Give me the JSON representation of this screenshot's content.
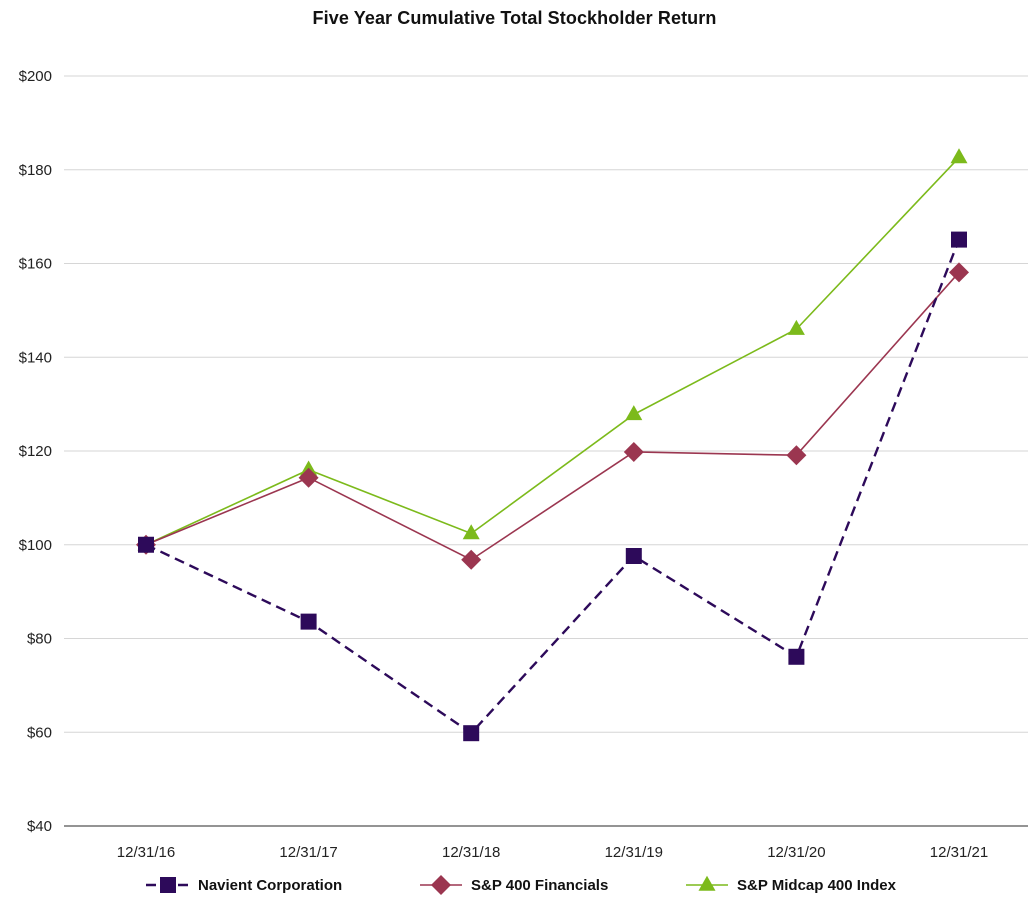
{
  "chart_data": {
    "type": "line",
    "title": "Five Year Cumulative Total Stockholder Return",
    "xlabel": "",
    "ylabel": "",
    "categories": [
      "12/31/16",
      "12/31/17",
      "12/31/18",
      "12/31/19",
      "12/31/20",
      "12/31/21"
    ],
    "ylim": [
      40,
      200
    ],
    "yticks": [
      40,
      60,
      80,
      100,
      120,
      140,
      160,
      180,
      200
    ],
    "ytick_labels": [
      "$40",
      "$60",
      "$80",
      "$100",
      "$120",
      "$140",
      "$160",
      "$180",
      "$200"
    ],
    "grid": "horizontal",
    "legend_position": "bottom",
    "series": [
      {
        "name": "Navient Corporation",
        "values": [
          100,
          83.6,
          59.8,
          97.6,
          76.1,
          165.1
        ],
        "color": "#2d0a5a",
        "marker": "square",
        "line_style": "dashed"
      },
      {
        "name": "S&P 400 Financials",
        "values": [
          100,
          114.3,
          96.8,
          119.8,
          119.1,
          158.1
        ],
        "color": "#9b3650",
        "marker": "diamond",
        "line_style": "solid"
      },
      {
        "name": "S&P Midcap 400 Index",
        "values": [
          100,
          116.0,
          102.4,
          127.8,
          146.0,
          182.6
        ],
        "color": "#7cba1b",
        "marker": "triangle",
        "line_style": "solid"
      }
    ]
  }
}
